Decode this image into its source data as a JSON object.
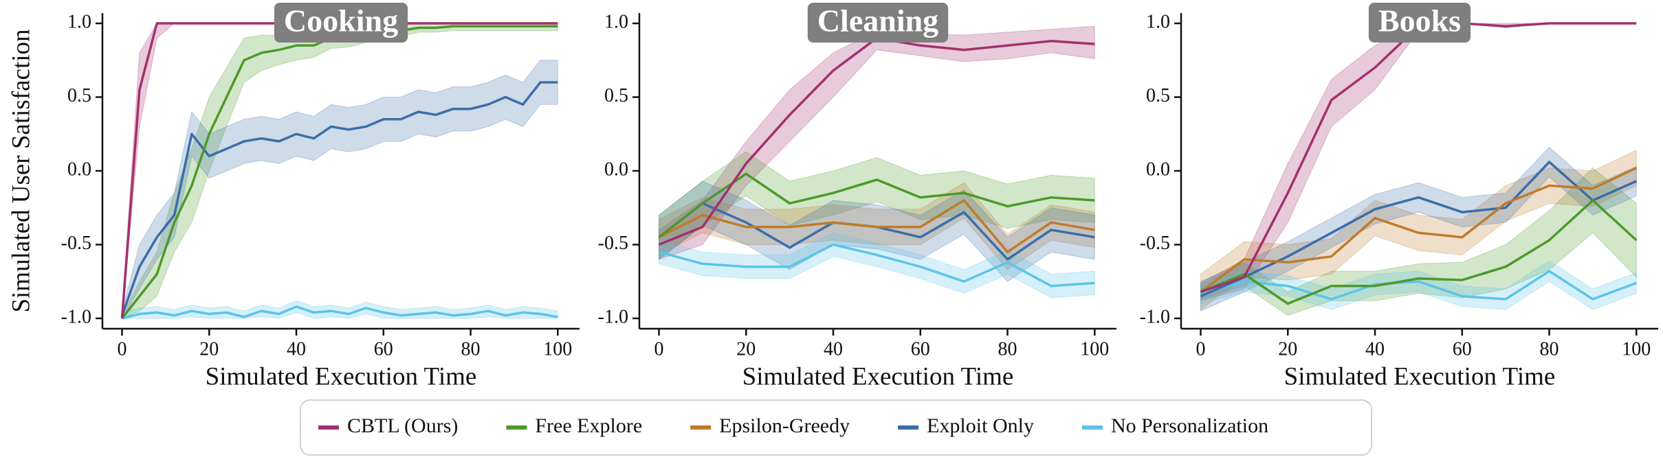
{
  "chart_data": [
    {
      "type": "line",
      "title": "Cooking",
      "xlabel": "Simulated Execution Time",
      "ylabel": "Simulated User Satisfaction",
      "x": [
        0,
        4,
        8,
        12,
        16,
        20,
        24,
        28,
        32,
        36,
        40,
        44,
        48,
        52,
        56,
        60,
        64,
        68,
        72,
        76,
        80,
        84,
        88,
        92,
        96,
        100
      ],
      "xlim": [
        -4.5,
        105
      ],
      "ylim": [
        -1.07,
        1.07
      ],
      "xticks": [
        0,
        20,
        40,
        60,
        80,
        100
      ],
      "yticks": [
        {
          "value": -1.0,
          "label": "-1.0"
        },
        {
          "value": -0.5,
          "label": "-0.5"
        },
        {
          "value": 0.0,
          "label": "0.0"
        },
        {
          "value": 0.5,
          "label": "0.5"
        },
        {
          "value": 1.0,
          "label": "1.0"
        }
      ],
      "series": [
        {
          "name": "CBTL (Ours)",
          "color": "#a4306f",
          "values": [
            -1.0,
            0.55,
            1.0,
            1.0,
            1.0,
            1.0,
            1.0,
            1.0,
            1.0,
            1.0,
            1.0,
            1.0,
            1.0,
            1.0,
            1.0,
            1.0,
            1.0,
            1.0,
            1.0,
            1.0,
            1.0,
            1.0,
            1.0,
            1.0,
            1.0,
            1.0
          ],
          "lower": [
            -1.0,
            0.3,
            0.9,
            1.0,
            1.0,
            1.0,
            1.0,
            1.0,
            1.0,
            1.0,
            1.0,
            1.0,
            1.0,
            1.0,
            1.0,
            1.0,
            1.0,
            1.0,
            1.0,
            1.0,
            1.0,
            1.0,
            1.0,
            1.0,
            1.0,
            1.0
          ],
          "upper": [
            -0.95,
            0.8,
            1.0,
            1.0,
            1.0,
            1.0,
            1.0,
            1.0,
            1.0,
            1.0,
            1.0,
            1.0,
            1.0,
            1.0,
            1.0,
            1.0,
            1.0,
            1.0,
            1.0,
            1.0,
            1.0,
            1.0,
            1.0,
            1.0,
            1.0,
            1.0
          ]
        },
        {
          "name": "Free Explore",
          "color": "#4c9a2a",
          "values": [
            -1.0,
            -0.85,
            -0.7,
            -0.35,
            -0.1,
            0.25,
            0.5,
            0.75,
            0.8,
            0.82,
            0.85,
            0.85,
            0.9,
            0.9,
            0.92,
            0.93,
            0.95,
            0.97,
            0.97,
            0.98,
            0.98,
            0.98,
            0.98,
            0.98,
            0.98,
            0.98
          ],
          "lower": [
            -1.0,
            -0.95,
            -0.85,
            -0.55,
            -0.35,
            0.0,
            0.3,
            0.6,
            0.68,
            0.72,
            0.75,
            0.77,
            0.83,
            0.84,
            0.87,
            0.88,
            0.91,
            0.94,
            0.94,
            0.95,
            0.95,
            0.95,
            0.95,
            0.95,
            0.95,
            0.95
          ],
          "upper": [
            -0.98,
            -0.75,
            -0.55,
            -0.15,
            0.15,
            0.5,
            0.7,
            0.9,
            0.92,
            0.92,
            0.95,
            0.93,
            0.97,
            0.96,
            0.97,
            0.98,
            0.99,
            1.0,
            1.0,
            1.0,
            1.0,
            1.0,
            1.0,
            1.0,
            1.0,
            1.0
          ]
        },
        {
          "name": "Exploit Only",
          "color": "#3b6ea8",
          "values": [
            -0.98,
            -0.65,
            -0.45,
            -0.3,
            0.25,
            0.1,
            0.15,
            0.2,
            0.22,
            0.2,
            0.25,
            0.22,
            0.3,
            0.28,
            0.3,
            0.35,
            0.35,
            0.4,
            0.38,
            0.42,
            0.42,
            0.45,
            0.5,
            0.45,
            0.6,
            0.6
          ],
          "lower": [
            -1.0,
            -0.8,
            -0.6,
            -0.45,
            0.1,
            -0.05,
            0.0,
            0.05,
            0.07,
            0.05,
            0.1,
            0.07,
            0.15,
            0.13,
            0.15,
            0.2,
            0.2,
            0.25,
            0.23,
            0.27,
            0.27,
            0.3,
            0.35,
            0.3,
            0.45,
            0.45
          ],
          "upper": [
            -0.95,
            -0.5,
            -0.3,
            -0.15,
            0.4,
            0.25,
            0.3,
            0.35,
            0.37,
            0.35,
            0.4,
            0.37,
            0.45,
            0.43,
            0.45,
            0.5,
            0.5,
            0.55,
            0.53,
            0.57,
            0.57,
            0.6,
            0.65,
            0.6,
            0.75,
            0.75
          ]
        },
        {
          "name": "No Personalization",
          "color": "#5bc4e8",
          "values": [
            -1.0,
            -0.97,
            -0.96,
            -0.98,
            -0.95,
            -0.97,
            -0.96,
            -0.99,
            -0.95,
            -0.97,
            -0.92,
            -0.96,
            -0.95,
            -0.97,
            -0.93,
            -0.96,
            -0.98,
            -0.97,
            -0.96,
            -0.98,
            -0.97,
            -0.95,
            -0.98,
            -0.96,
            -0.97,
            -0.99
          ],
          "lower": [
            -1.0,
            -1.0,
            -1.0,
            -1.0,
            -0.99,
            -1.0,
            -1.0,
            -1.0,
            -0.99,
            -1.0,
            -0.96,
            -1.0,
            -0.99,
            -1.0,
            -0.97,
            -1.0,
            -1.0,
            -1.0,
            -1.0,
            -1.0,
            -1.0,
            -0.99,
            -1.0,
            -1.0,
            -1.0,
            -1.0
          ],
          "upper": [
            -0.96,
            -0.93,
            -0.92,
            -0.94,
            -0.91,
            -0.93,
            -0.92,
            -0.95,
            -0.91,
            -0.93,
            -0.88,
            -0.92,
            -0.91,
            -0.93,
            -0.89,
            -0.92,
            -0.94,
            -0.93,
            -0.92,
            -0.94,
            -0.93,
            -0.91,
            -0.94,
            -0.92,
            -0.93,
            -0.95
          ]
        }
      ]
    },
    {
      "type": "line",
      "title": "Cleaning",
      "xlabel": "Simulated Execution Time",
      "x": [
        0,
        10,
        20,
        30,
        40,
        50,
        60,
        70,
        80,
        90,
        100
      ],
      "xlim": [
        -4.5,
        105
      ],
      "ylim": [
        -1.07,
        1.07
      ],
      "xticks": [
        0,
        20,
        40,
        60,
        80,
        100
      ],
      "yticks": [
        {
          "value": -1.0,
          "label": "-1.0"
        },
        {
          "value": -0.5,
          "label": "-0.5"
        },
        {
          "value": 0.0,
          "label": "0.0"
        },
        {
          "value": 0.5,
          "label": "0.5"
        },
        {
          "value": 1.0,
          "label": "1.0"
        }
      ],
      "series": [
        {
          "name": "CBTL (Ours)",
          "color": "#a4306f",
          "values": [
            -0.5,
            -0.38,
            0.05,
            0.38,
            0.68,
            0.9,
            0.85,
            0.82,
            0.85,
            0.88,
            0.86
          ],
          "lower": [
            -0.6,
            -0.5,
            -0.1,
            0.2,
            0.5,
            0.82,
            0.78,
            0.74,
            0.76,
            0.8,
            0.76
          ],
          "upper": [
            -0.4,
            -0.2,
            0.2,
            0.55,
            0.8,
            0.95,
            0.93,
            0.92,
            0.94,
            0.96,
            0.98
          ]
        },
        {
          "name": "Free Explore",
          "color": "#4c9a2a",
          "values": [
            -0.45,
            -0.22,
            -0.02,
            -0.22,
            -0.15,
            -0.06,
            -0.18,
            -0.15,
            -0.24,
            -0.18,
            -0.2
          ],
          "lower": [
            -0.6,
            -0.37,
            -0.17,
            -0.37,
            -0.3,
            -0.21,
            -0.33,
            -0.3,
            -0.39,
            -0.33,
            -0.35
          ],
          "upper": [
            -0.3,
            -0.07,
            0.13,
            -0.07,
            0.0,
            0.09,
            -0.03,
            0.0,
            -0.09,
            -0.03,
            -0.05
          ]
        },
        {
          "name": "Epsilon-Greedy",
          "color": "#c07b2a",
          "values": [
            -0.45,
            -0.3,
            -0.38,
            -0.38,
            -0.35,
            -0.38,
            -0.38,
            -0.2,
            -0.55,
            -0.35,
            -0.4
          ],
          "lower": [
            -0.57,
            -0.42,
            -0.5,
            -0.5,
            -0.47,
            -0.5,
            -0.5,
            -0.32,
            -0.67,
            -0.47,
            -0.52
          ],
          "upper": [
            -0.33,
            -0.18,
            -0.26,
            -0.26,
            -0.23,
            -0.26,
            -0.26,
            -0.08,
            -0.43,
            -0.23,
            -0.28
          ]
        },
        {
          "name": "Exploit Only",
          "color": "#3b6ea8",
          "values": [
            -0.45,
            -0.22,
            -0.35,
            -0.52,
            -0.35,
            -0.38,
            -0.45,
            -0.28,
            -0.6,
            -0.4,
            -0.45
          ],
          "lower": [
            -0.6,
            -0.37,
            -0.5,
            -0.67,
            -0.5,
            -0.53,
            -0.6,
            -0.43,
            -0.75,
            -0.55,
            -0.6
          ],
          "upper": [
            -0.3,
            -0.07,
            -0.2,
            -0.37,
            -0.2,
            -0.23,
            -0.3,
            -0.13,
            -0.45,
            -0.25,
            -0.3
          ]
        },
        {
          "name": "No Personalization",
          "color": "#5bc4e8",
          "values": [
            -0.55,
            -0.63,
            -0.65,
            -0.65,
            -0.5,
            -0.57,
            -0.65,
            -0.75,
            -0.62,
            -0.78,
            -0.76
          ],
          "lower": [
            -0.63,
            -0.71,
            -0.73,
            -0.73,
            -0.58,
            -0.65,
            -0.73,
            -0.83,
            -0.7,
            -0.86,
            -0.84
          ],
          "upper": [
            -0.47,
            -0.55,
            -0.57,
            -0.57,
            -0.42,
            -0.49,
            -0.57,
            -0.67,
            -0.54,
            -0.7,
            -0.68
          ]
        }
      ]
    },
    {
      "type": "line",
      "title": "Books",
      "xlabel": "Simulated Execution Time",
      "x": [
        0,
        10,
        20,
        30,
        40,
        50,
        60,
        70,
        80,
        90,
        100
      ],
      "xlim": [
        -4.5,
        105
      ],
      "ylim": [
        -1.07,
        1.07
      ],
      "xticks": [
        0,
        20,
        40,
        60,
        80,
        100
      ],
      "yticks": [
        {
          "value": -1.0,
          "label": "-1.0"
        },
        {
          "value": -0.5,
          "label": "-0.5"
        },
        {
          "value": 0.0,
          "label": "0.0"
        },
        {
          "value": 0.5,
          "label": "0.5"
        },
        {
          "value": 1.0,
          "label": "1.0"
        }
      ],
      "series": [
        {
          "name": "CBTL (Ours)",
          "color": "#a4306f",
          "values": [
            -0.82,
            -0.72,
            -0.15,
            0.48,
            0.7,
            0.98,
            1.0,
            0.98,
            1.0,
            1.0,
            1.0
          ],
          "lower": [
            -0.88,
            -0.8,
            -0.35,
            0.3,
            0.55,
            0.95,
            1.0,
            0.97,
            1.0,
            1.0,
            1.0
          ],
          "upper": [
            -0.76,
            -0.6,
            0.05,
            0.62,
            0.85,
            1.0,
            1.0,
            1.0,
            1.0,
            1.0,
            1.0
          ]
        },
        {
          "name": "Free Explore",
          "color": "#4c9a2a",
          "values": [
            -0.82,
            -0.7,
            -0.9,
            -0.78,
            -0.78,
            -0.73,
            -0.74,
            -0.65,
            -0.47,
            -0.2,
            -0.47
          ],
          "lower": [
            -0.87,
            -0.78,
            -0.98,
            -0.88,
            -0.88,
            -0.83,
            -0.86,
            -0.8,
            -0.67,
            -0.42,
            -0.72
          ],
          "upper": [
            -0.77,
            -0.62,
            -0.82,
            -0.68,
            -0.68,
            -0.63,
            -0.62,
            -0.5,
            -0.27,
            0.02,
            -0.22
          ]
        },
        {
          "name": "Epsilon-Greedy",
          "color": "#c07b2a",
          "values": [
            -0.82,
            -0.6,
            -0.62,
            -0.58,
            -0.32,
            -0.42,
            -0.45,
            -0.22,
            -0.1,
            -0.12,
            0.02
          ],
          "lower": [
            -0.94,
            -0.72,
            -0.74,
            -0.7,
            -0.44,
            -0.54,
            -0.57,
            -0.34,
            -0.22,
            -0.24,
            -0.1
          ],
          "upper": [
            -0.7,
            -0.48,
            -0.5,
            -0.46,
            -0.2,
            -0.3,
            -0.33,
            -0.1,
            0.02,
            0.0,
            0.14
          ]
        },
        {
          "name": "Exploit Only",
          "color": "#3b6ea8",
          "values": [
            -0.85,
            -0.72,
            -0.58,
            -0.42,
            -0.26,
            -0.18,
            -0.28,
            -0.25,
            0.06,
            -0.2,
            -0.07
          ],
          "lower": [
            -0.95,
            -0.82,
            -0.68,
            -0.52,
            -0.36,
            -0.28,
            -0.38,
            -0.35,
            -0.04,
            -0.3,
            -0.17
          ],
          "upper": [
            -0.75,
            -0.62,
            -0.48,
            -0.32,
            -0.16,
            -0.08,
            -0.18,
            -0.15,
            0.16,
            -0.1,
            0.03
          ]
        },
        {
          "name": "No Personalization",
          "color": "#5bc4e8",
          "values": [
            -0.83,
            -0.75,
            -0.78,
            -0.87,
            -0.77,
            -0.75,
            -0.85,
            -0.87,
            -0.68,
            -0.87,
            -0.76
          ],
          "lower": [
            -0.9,
            -0.82,
            -0.85,
            -0.94,
            -0.84,
            -0.82,
            -0.92,
            -0.94,
            -0.75,
            -0.94,
            -0.83
          ],
          "upper": [
            -0.76,
            -0.68,
            -0.71,
            -0.8,
            -0.7,
            -0.68,
            -0.78,
            -0.8,
            -0.61,
            -0.8,
            -0.69
          ]
        }
      ]
    }
  ]
}
